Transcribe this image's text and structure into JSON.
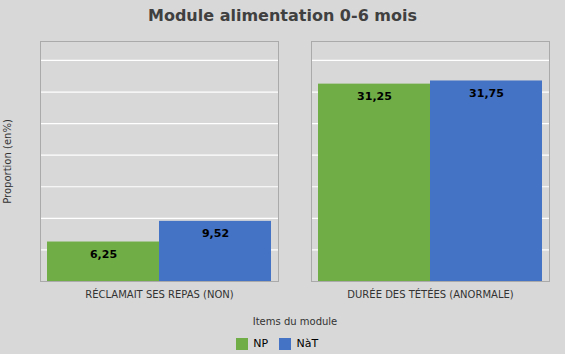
{
  "chart_data": {
    "type": "bar",
    "title": "Module alimentation 0-6 mois",
    "xlabel": "Items du module",
    "ylabel": "Proportion (en%)",
    "categories": [
      "RÉCLAMAIT SES REPAS (NON)",
      "DURÉE DES TÉTÉES (ANORMALE)"
    ],
    "series": [
      {
        "name": "NP",
        "color": "#70AD47",
        "values": [
          6.25,
          31.25
        ],
        "value_labels": [
          "6,25",
          "31,25"
        ]
      },
      {
        "name": "NàT",
        "color": "#4472C4",
        "values": [
          9.52,
          31.75
        ],
        "value_labels": [
          "9,52",
          "31,75"
        ]
      }
    ],
    "ylim": [
      0,
      38
    ],
    "yticks": [
      0,
      5,
      10,
      15,
      20,
      25,
      30,
      35
    ],
    "grid": true,
    "legend": "bottom",
    "data_labels": true,
    "tick_labels": "x"
  }
}
